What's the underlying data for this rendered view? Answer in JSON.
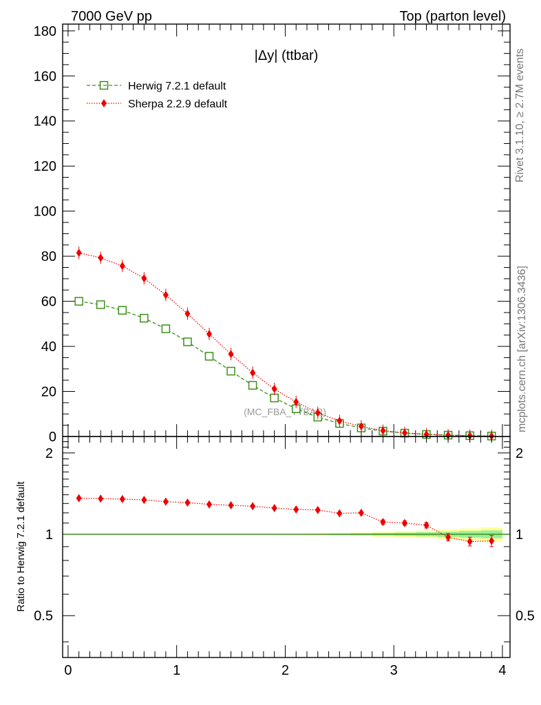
{
  "header": {
    "left": "7000 GeV pp",
    "right": "Top (parton level)"
  },
  "side_labels": {
    "rivet": "Rivet 3.1.10, ≥ 2.7M events",
    "mcplots": "mcplots.cern.ch [arXiv:1306.3436]"
  },
  "analysis_tag": "(MC_FBA_TTBAR)",
  "colors": {
    "herwig": "#3c8f1a",
    "sherpa": "#ee0000",
    "band_yellow": "#ffff99",
    "band_green": "#99ee99"
  },
  "chart_data": [
    {
      "type": "line",
      "title": "|Δy| (ttbar)",
      "xlabel": "",
      "ylabel": "",
      "xlim": [
        -0.05,
        4.07
      ],
      "ylim": [
        0,
        183
      ],
      "grid": false,
      "legend_position": "top-left",
      "y_ticks": [
        "0",
        "20",
        "40",
        "60",
        "80",
        "100",
        "120",
        "140",
        "160",
        "180"
      ],
      "x": [
        0.1,
        0.3,
        0.5,
        0.7,
        0.9,
        1.1,
        1.3,
        1.5,
        1.7,
        1.9,
        2.1,
        2.3,
        2.5,
        2.7,
        2.9,
        3.1,
        3.3,
        3.5,
        3.7,
        3.9
      ],
      "series": [
        {
          "name": "Herwig 7.2.1 default",
          "marker": "open-square",
          "line": "dashed",
          "values": [
            60.0,
            58.5,
            56.0,
            52.5,
            47.8,
            42.0,
            35.6,
            29.0,
            22.7,
            17.1,
            12.3,
            8.6,
            5.8,
            3.8,
            2.4,
            1.5,
            0.9,
            0.6,
            0.35,
            0.2
          ]
        },
        {
          "name": "Sherpa 2.2.9 default",
          "marker": "filled-diamond",
          "line": "dotted",
          "values": [
            81.5,
            79.3,
            75.7,
            70.2,
            62.8,
            54.5,
            45.5,
            36.6,
            28.3,
            21.1,
            15.3,
            10.5,
            6.9,
            4.5,
            2.6,
            1.6,
            0.95,
            0.58,
            0.33,
            0.19
          ]
        }
      ]
    },
    {
      "type": "line",
      "title": "",
      "xlabel": "",
      "ylabel": "Ratio to Herwig 7.2.1 default",
      "xlim": [
        -0.05,
        4.07
      ],
      "ylim": [
        0.35,
        2.3
      ],
      "grid": false,
      "x_ticks": [
        "0",
        "1",
        "2",
        "3",
        "4"
      ],
      "y_ticks": [
        "0.5",
        "1",
        "2"
      ],
      "x": [
        0.1,
        0.3,
        0.5,
        0.7,
        0.9,
        1.1,
        1.3,
        1.5,
        1.7,
        1.9,
        2.1,
        2.3,
        2.5,
        2.7,
        2.9,
        3.1,
        3.3,
        3.5,
        3.7,
        3.9
      ],
      "series": [
        {
          "name": "Herwig 7.2.1 default",
          "marker": "none",
          "line": "solid",
          "values": [
            1,
            1,
            1,
            1,
            1,
            1,
            1,
            1,
            1,
            1,
            1,
            1,
            1,
            1,
            1,
            1,
            1,
            1,
            1,
            1
          ]
        },
        {
          "name": "Sherpa 2.2.9 default",
          "marker": "filled-diamond",
          "line": "dotted",
          "values": [
            1.36,
            1.355,
            1.35,
            1.34,
            1.32,
            1.31,
            1.29,
            1.28,
            1.27,
            1.25,
            1.235,
            1.23,
            1.195,
            1.2,
            1.11,
            1.1,
            1.08,
            0.975,
            0.94,
            0.945
          ]
        }
      ]
    }
  ]
}
